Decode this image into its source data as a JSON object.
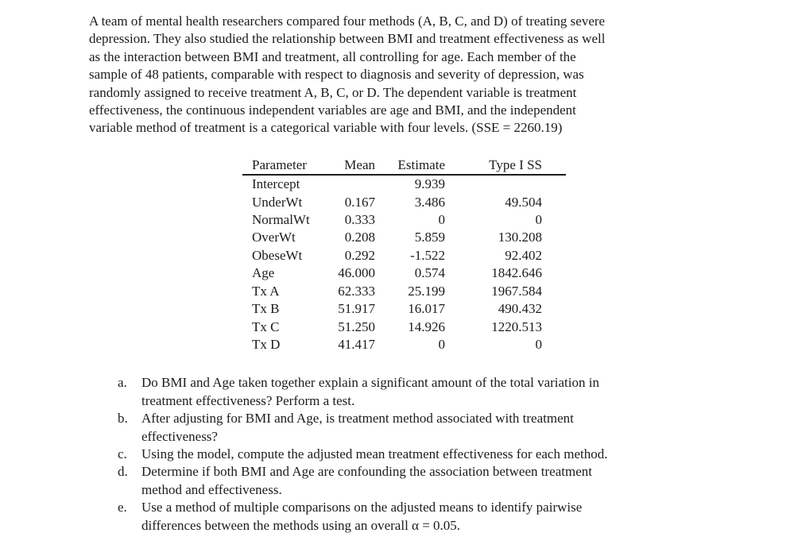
{
  "document": {
    "intro_lines": [
      "A team of mental health researchers compared four methods (A, B, C, and D) of treating severe",
      "depression. They also studied the relationship between BMI and treatment effectiveness as well",
      "as the interaction between BMI and treatment, all controlling for age. Each member of the",
      "sample of 48 patients, comparable with respect to diagnosis and severity of depression, was",
      "randomly assigned to receive treatment A, B, C, or D. The dependent variable is treatment",
      "effectiveness, the continuous independent variables are age and BMI, and the independent",
      "variable method of treatment is a categorical variable with four levels. (SSE = 2260.19)"
    ],
    "table": {
      "headers": [
        "Parameter",
        "Mean",
        "Estimate",
        "Type I SS"
      ],
      "rows": [
        {
          "parameter": "Intercept",
          "mean": "",
          "estimate": "9.939",
          "type1ss": ""
        },
        {
          "parameter": "UnderWt",
          "mean": "0.167",
          "estimate": "3.486",
          "type1ss": "49.504"
        },
        {
          "parameter": "NormalWt",
          "mean": "0.333",
          "estimate": "0",
          "type1ss": "0"
        },
        {
          "parameter": "OverWt",
          "mean": "0.208",
          "estimate": "5.859",
          "type1ss": "130.208"
        },
        {
          "parameter": "ObeseWt",
          "mean": "0.292",
          "estimate": "-1.522",
          "type1ss": "92.402"
        },
        {
          "parameter": "Age",
          "mean": "46.000",
          "estimate": "0.574",
          "type1ss": "1842.646"
        },
        {
          "parameter": "Tx A",
          "mean": "62.333",
          "estimate": "25.199",
          "type1ss": "1967.584"
        },
        {
          "parameter": "Tx B",
          "mean": "51.917",
          "estimate": "16.017",
          "type1ss": "490.432"
        },
        {
          "parameter": "Tx C",
          "mean": "51.250",
          "estimate": "14.926",
          "type1ss": "1220.513"
        },
        {
          "parameter": "Tx D",
          "mean": "41.417",
          "estimate": "0",
          "type1ss": "0"
        }
      ]
    },
    "questions": [
      {
        "marker": "a.",
        "lines": [
          "Do BMI and Age taken together explain a significant amount of the total variation in",
          "treatment effectiveness? Perform a test."
        ]
      },
      {
        "marker": "b.",
        "lines": [
          "After adjusting for BMI and Age, is treatment method associated with treatment",
          "effectiveness?"
        ]
      },
      {
        "marker": "c.",
        "lines": [
          "Using the model, compute the adjusted mean treatment effectiveness for each method."
        ]
      },
      {
        "marker": "d.",
        "lines": [
          "Determine if both BMI and Age are confounding the association between treatment",
          "method and effectiveness."
        ]
      },
      {
        "marker": "e.",
        "lines": [
          "Use a method of multiple comparisons on the adjusted means to identify pairwise",
          "differences between the methods using an overall α = 0.05."
        ]
      }
    ],
    "colors": {
      "text": "#1c1c1c",
      "background": "#ffffff",
      "rule": "#1c1c1c"
    }
  }
}
